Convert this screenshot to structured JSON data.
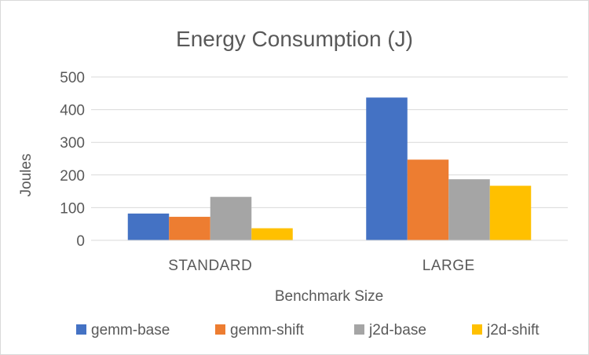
{
  "chart_data": {
    "type": "bar",
    "title": "Energy Consumption (J)",
    "xlabel": "Benchmark Size",
    "ylabel": "Joules",
    "categories": [
      "STANDARD",
      "LARGE"
    ],
    "ylim": [
      0,
      500
    ],
    "yticks": [
      0,
      100,
      200,
      300,
      400,
      500
    ],
    "grid": true,
    "legend_position": "bottom",
    "series": [
      {
        "name": "gemm-base",
        "color": "#4472C4",
        "values": [
          82,
          437
        ]
      },
      {
        "name": "gemm-shift",
        "color": "#ED7D31",
        "values": [
          72,
          247
        ]
      },
      {
        "name": "j2d-base",
        "color": "#A5A5A5",
        "values": [
          133,
          187
        ]
      },
      {
        "name": "j2d-shift",
        "color": "#FFC000",
        "values": [
          37,
          167
        ]
      }
    ]
  }
}
